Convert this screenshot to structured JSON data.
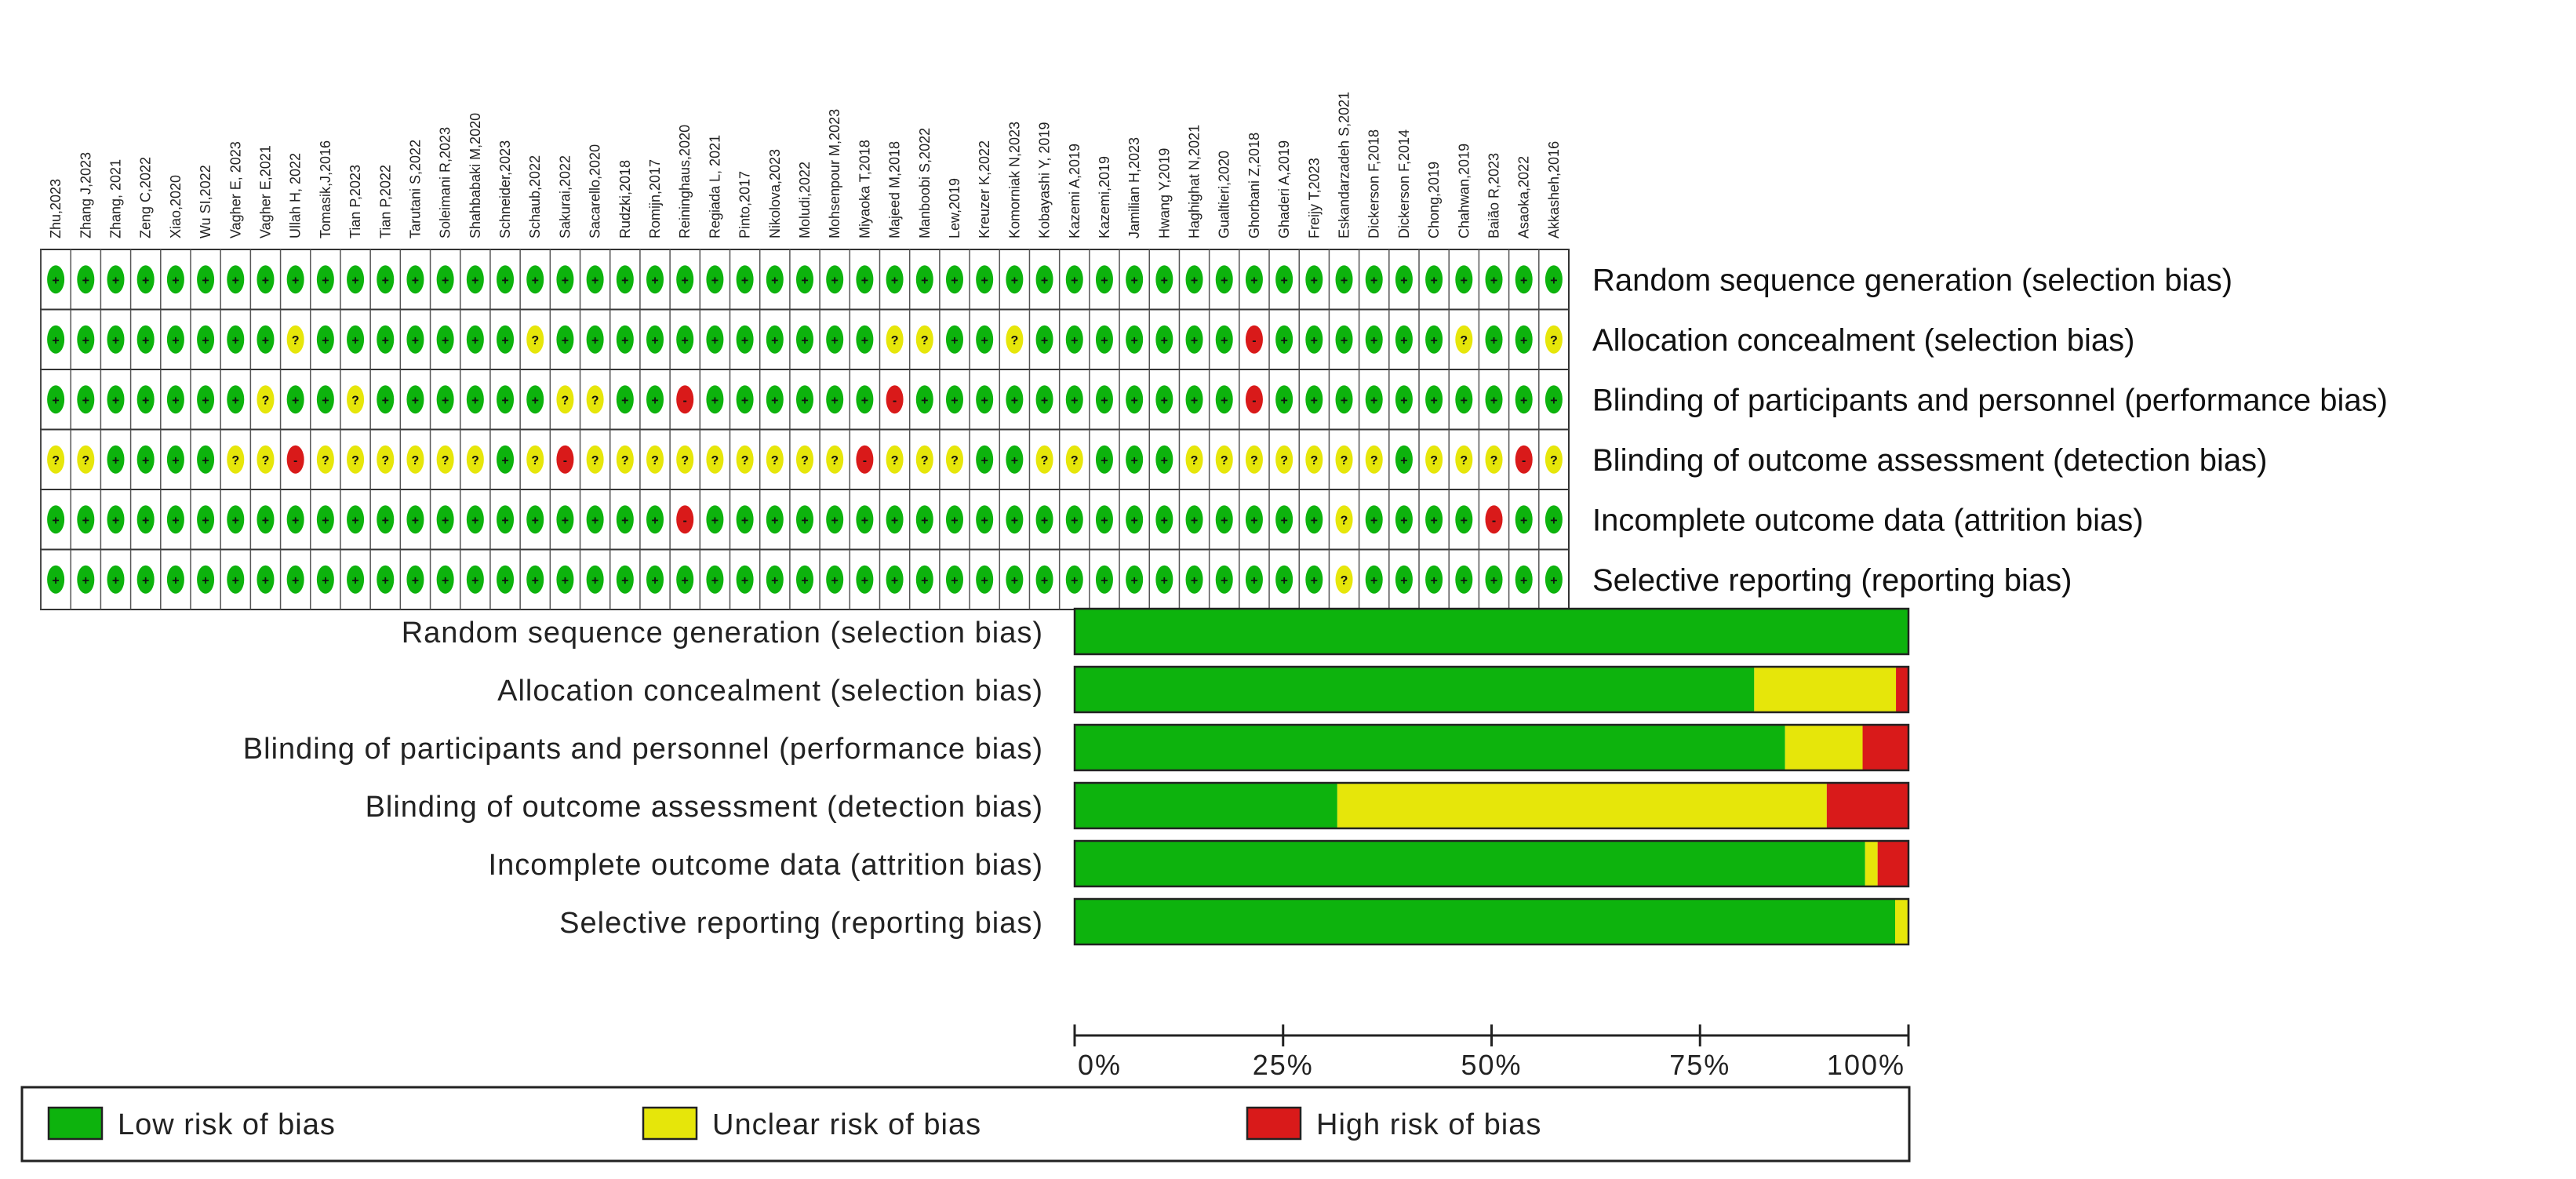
{
  "chart_data": [
    {
      "type": "heatmap",
      "studies": [
        "Zhu,2023",
        "Zhang J,2023",
        "Zhang, 2021",
        "Zeng C,2022",
        "Xiao,2020",
        "Wu SI,2022",
        "Vagher E, 2023",
        "Vagher E,2021",
        "Ullah H, 2022",
        "Tomasik,J,2016",
        "Tian P,2023",
        "Tian P,2022",
        "Tarutani S,2022",
        "Soleimani R,2023",
        "Shahbabaki M,2020",
        "Schneider,2023",
        "Schaub,2022",
        "Sakurai,2022",
        "Sacarello,2020",
        "Rudzki,2018",
        "Romijn,2017",
        "Reininghaus,2020",
        "Regiada L, 2021",
        "Pinto,2017",
        "Nikolova,2023",
        "Moludi,2022",
        "Mohsenpour M,2023",
        "Miyaoka T,2018",
        "Majeed M,2018",
        "Manboobi S,2022",
        "Lew,2019",
        "Kreuzer K,2022",
        "Komorniak N,2023",
        "Kobayashi Y, 2019",
        "Kazemi A,2019",
        "Kazemi,2019",
        "Jamilian H,2023",
        "Hwang Y,2019",
        "Haghighat N,2021",
        "Gualtieri,2020",
        "Ghorbani Z,2018",
        "Ghaderi A,2019",
        "Freijy T,2023",
        "Eskandarzadeh S,2021",
        "Dickerson F,2018",
        "Dickerson F,2014",
        "Chong,2019",
        "Chahwan,2019",
        "Baião R,2023",
        "Asaoka,2022",
        "Akkasheh,2016"
      ],
      "domains": [
        "Random sequence generation (selection bias)",
        "Allocation concealment (selection bias)",
        "Blinding of participants and personnel (performance bias)",
        "Blinding of outcome assessment (detection bias)",
        "Incomplete outcome data (attrition bias)",
        "Selective reporting (reporting bias)"
      ],
      "symbols": {
        "low": "+",
        "unclear": "?",
        "high": "-"
      },
      "colors": {
        "low": "#0db30d",
        "unclear": "#e6e60a",
        "high": "#d91a1a"
      },
      "matrix": [
        "LLLLLLLLLLLLLLLLLLLLLLLLLLLLLLLLLLLLLLLLLLLLLLLLLLL",
        "LLLLLLLLULLLLLLLULLLLLLLLLLLUULLULLLLLLLHLLLLLLULLUL",
        "LLLLLLLULLULLLLLLUULLHLLLLLLHLLLLLLLLLLLHLLLLLLLLLL",
        "UULLLLUUHUUUUUULUHUUUUUUUUUHUUULLUULLLUUUUUUULUUUHULU",
        "LLLLLLLLLLLLLLLLLLLLLHLLLLLLLLLLLLLLLLLLLLLULLLLHLLL",
        "LLLLLLLLLLLLLLLLLLLLLLLLLLLLLLLLLLLLLLLLLLLULLLLLLL"
      ]
    },
    {
      "type": "bar",
      "orientation": "horizontal",
      "stacked": true,
      "categories": [
        "Random sequence generation (selection bias)",
        "Allocation concealment (selection bias)",
        "Blinding of participants and personnel (performance bias)",
        "Blinding of outcome assessment (detection bias)",
        "Incomplete outcome data (attrition bias)",
        "Selective reporting (reporting bias)"
      ],
      "series": [
        {
          "name": "Low risk of bias",
          "color": "#0db30d",
          "values": [
            100,
            81.5,
            85.2,
            31.5,
            94.8,
            98.4
          ]
        },
        {
          "name": "Unclear risk of bias",
          "color": "#e6e60a",
          "values": [
            0,
            17,
            9.3,
            58.7,
            1.5,
            1.6
          ]
        },
        {
          "name": "High risk of bias",
          "color": "#d91a1a",
          "values": [
            0,
            1.5,
            5.5,
            9.8,
            3.7,
            0
          ]
        }
      ],
      "xlim": [
        0,
        100
      ],
      "xticks": [
        "0%",
        "25%",
        "50%",
        "75%",
        "100%"
      ],
      "legend_position": "bottom"
    }
  ]
}
